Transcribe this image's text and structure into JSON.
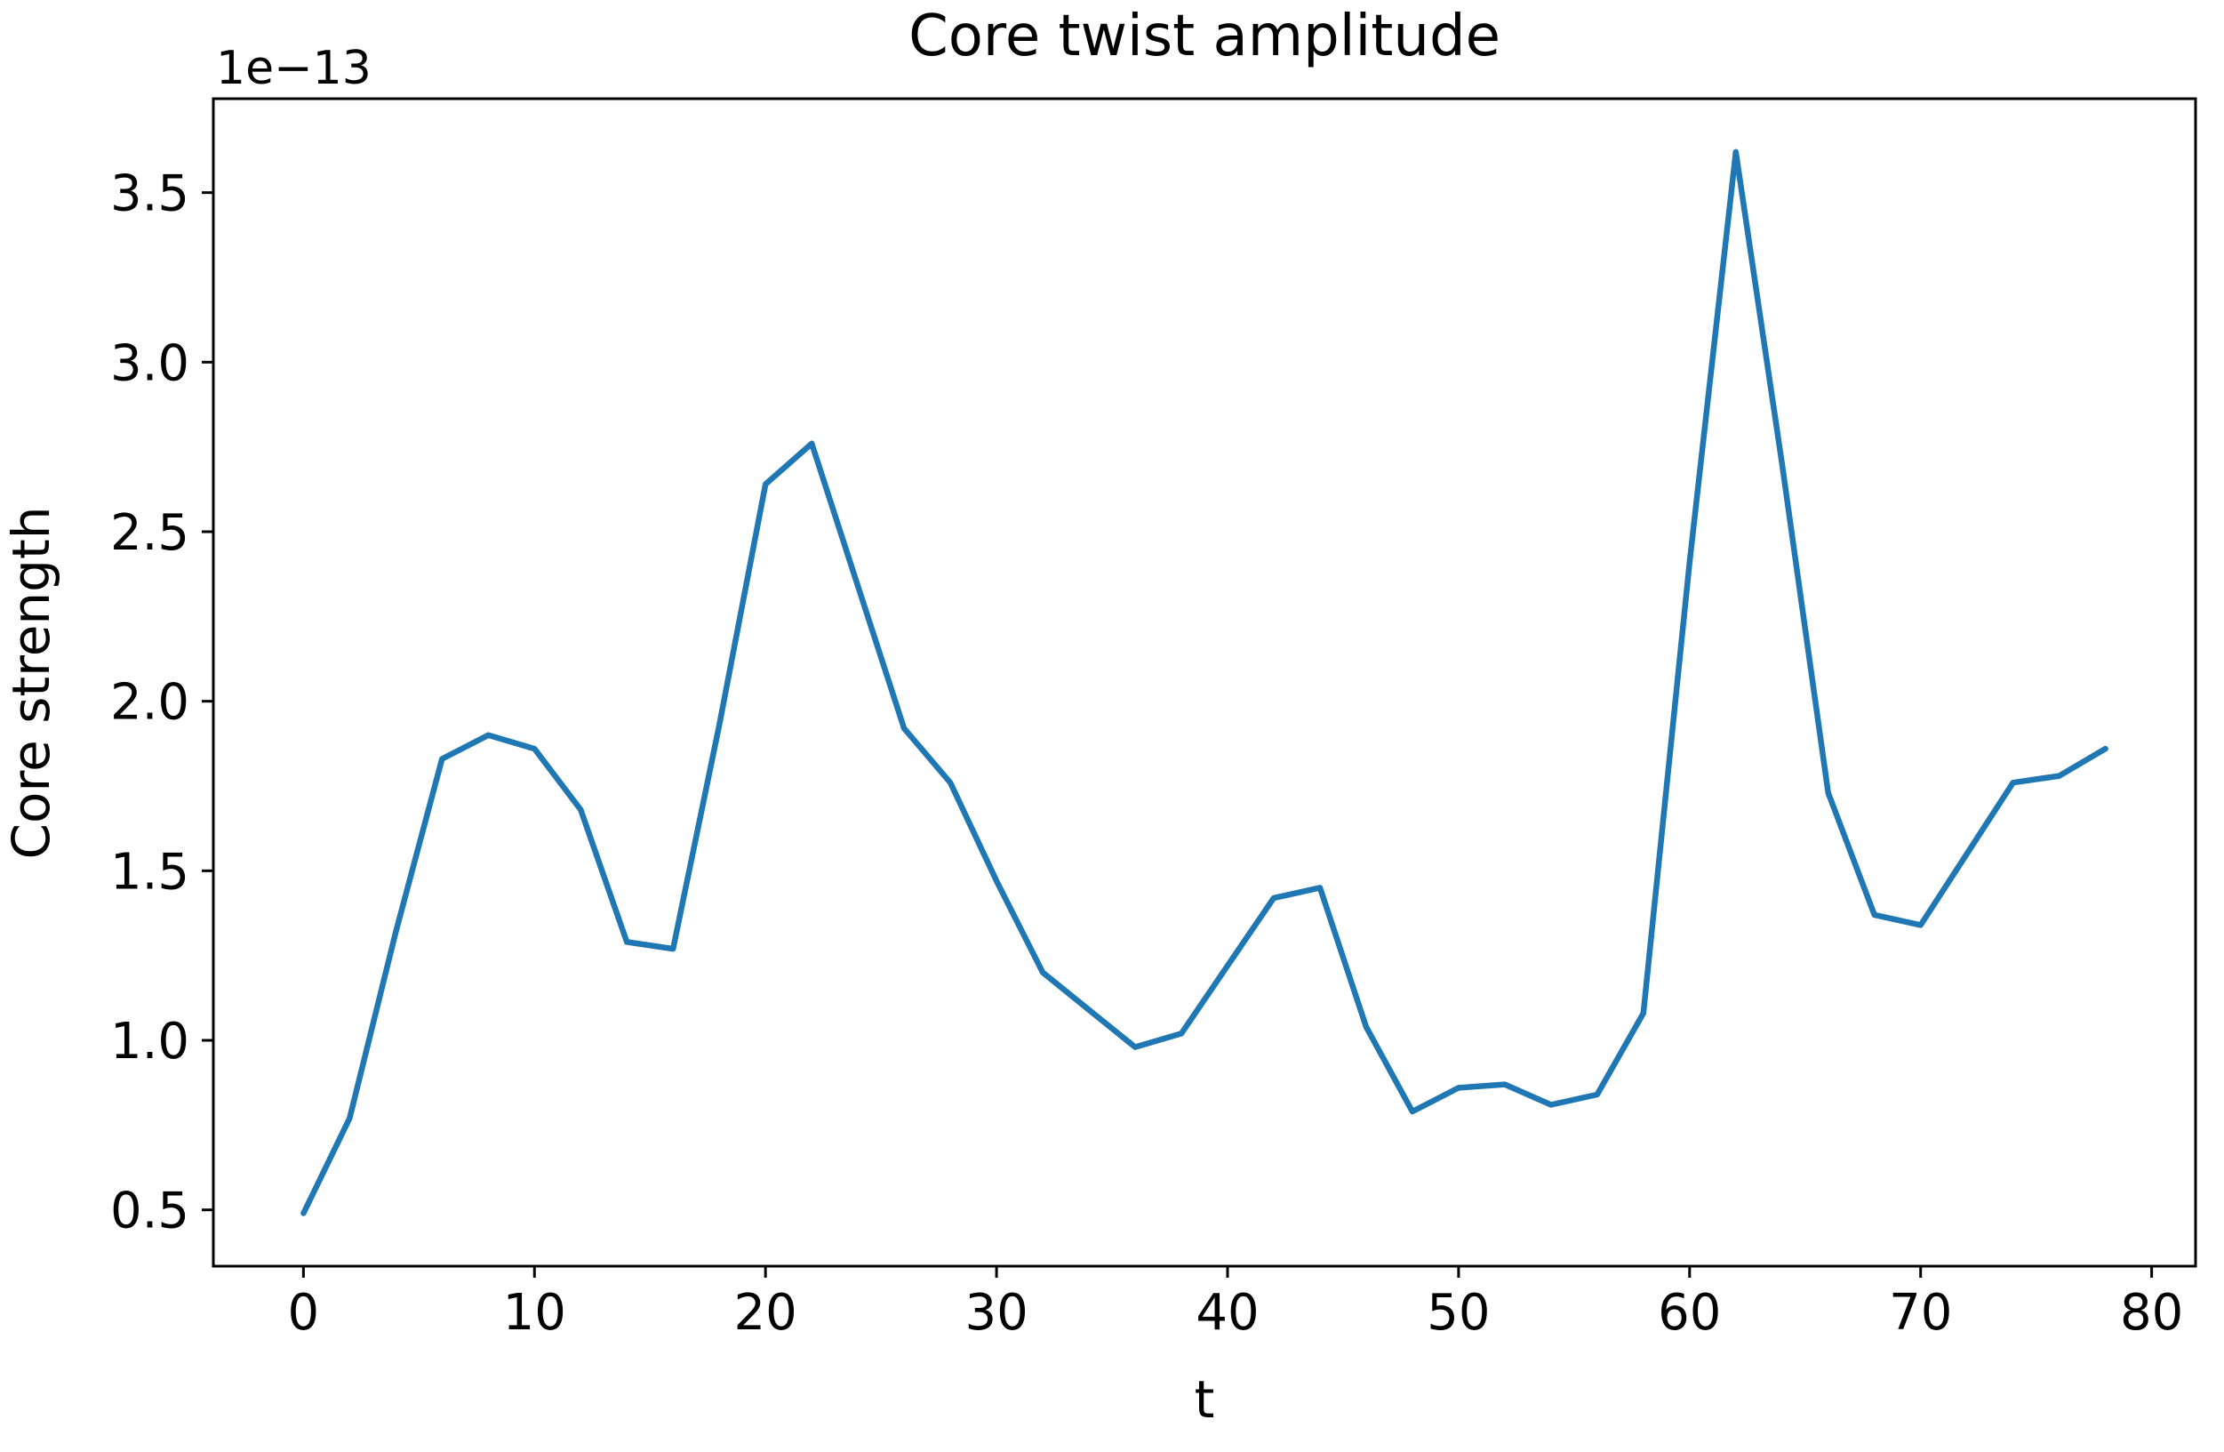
{
  "chart_data": {
    "type": "line",
    "title": "Core twist amplitude",
    "xlabel": "t",
    "ylabel": "Core strength",
    "y_offset_text": "1e−13",
    "line_color": "#1f77b4",
    "grid": false,
    "legend": null,
    "xlim": [
      -3.9,
      81.9
    ],
    "ylim": [
      0.334,
      3.777
    ],
    "xticks": [
      0,
      10,
      20,
      30,
      40,
      50,
      60,
      70,
      80
    ],
    "xtick_labels": [
      "0",
      "10",
      "20",
      "30",
      "40",
      "50",
      "60",
      "70",
      "80"
    ],
    "yticks": [
      0.5,
      1.0,
      1.5,
      2.0,
      2.5,
      3.0,
      3.5
    ],
    "ytick_labels": [
      "0.5",
      "1.0",
      "1.5",
      "2.0",
      "2.5",
      "3.0",
      "3.5"
    ],
    "units_note": "y values in units of 1e-13",
    "x": [
      0,
      2,
      4,
      6,
      8,
      10,
      12,
      14,
      16,
      18,
      20,
      22,
      24,
      26,
      28,
      30,
      32,
      34,
      36,
      38,
      40,
      42,
      44,
      46,
      48,
      50,
      52,
      54,
      56,
      58,
      60,
      62,
      64,
      66,
      68,
      70,
      72,
      74,
      76,
      78
    ],
    "y": [
      0.49,
      0.77,
      1.32,
      1.83,
      1.9,
      1.86,
      1.68,
      1.29,
      1.27,
      1.93,
      2.64,
      2.76,
      2.34,
      1.92,
      1.76,
      1.47,
      1.2,
      1.09,
      0.98,
      1.02,
      1.22,
      1.42,
      1.45,
      1.04,
      0.79,
      0.86,
      0.87,
      0.81,
      0.84,
      1.08,
      2.41,
      3.62,
      2.7,
      1.73,
      1.37,
      1.34,
      1.55,
      1.76,
      1.78,
      1.86
    ]
  }
}
